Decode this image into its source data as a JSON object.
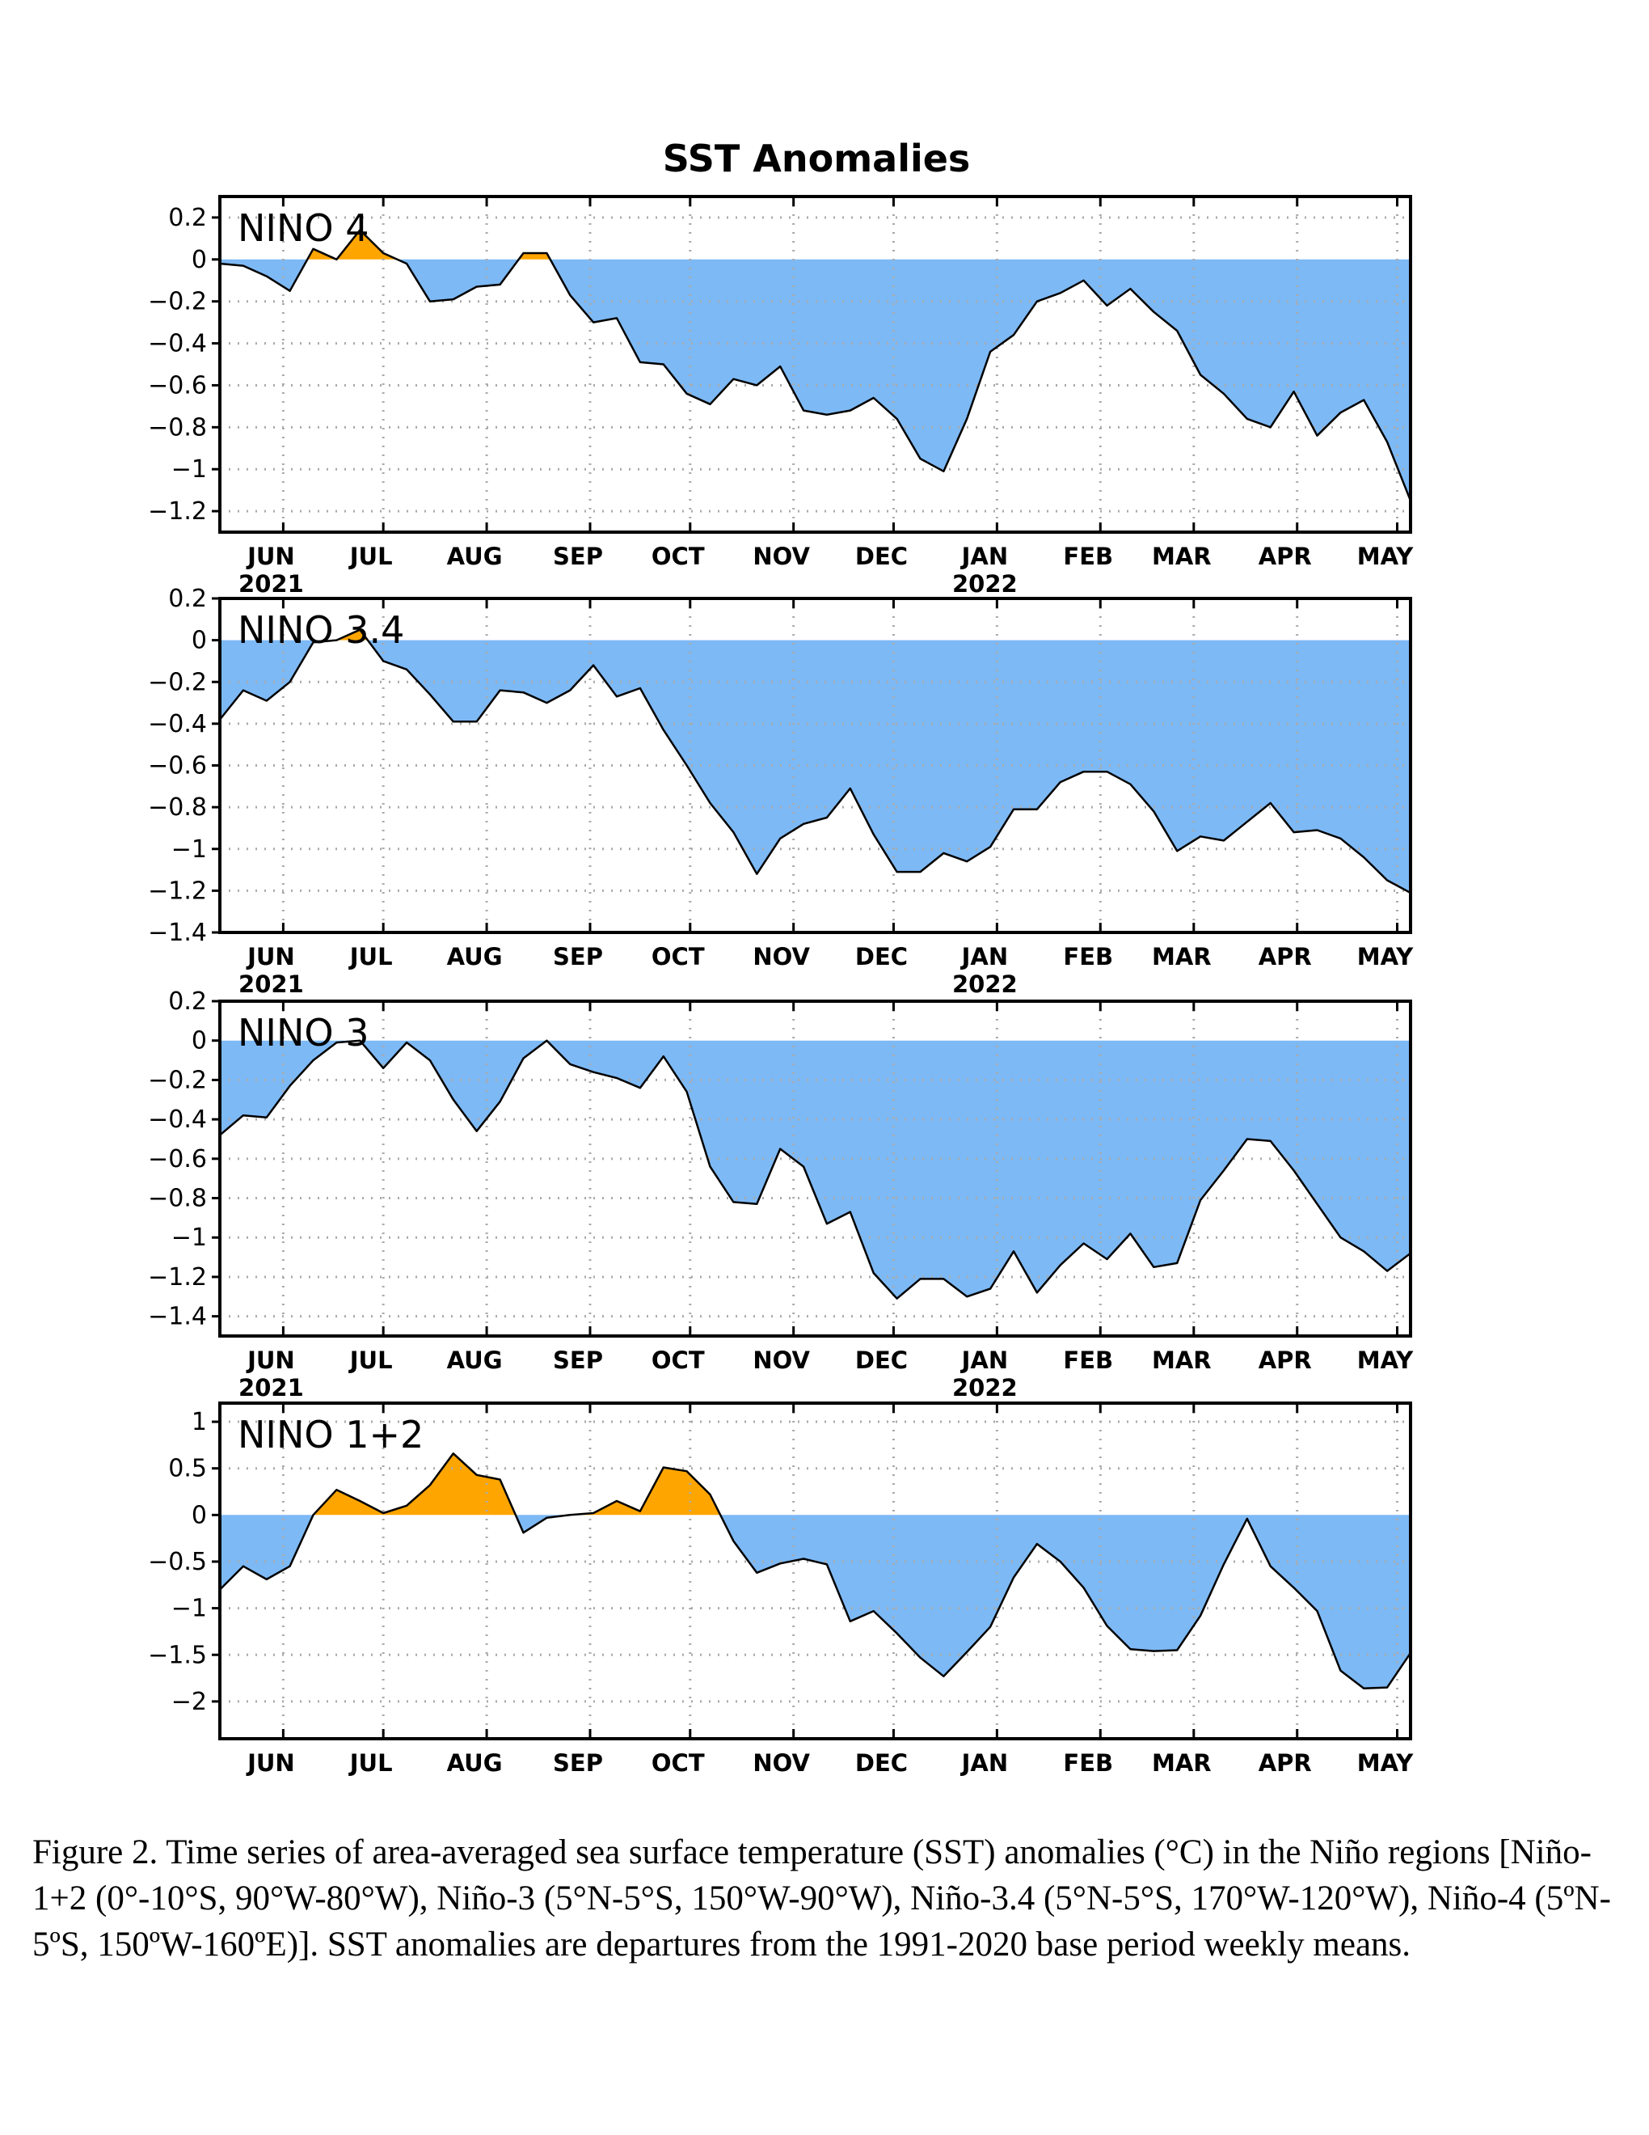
{
  "caption": "Figure 2. Time series of area-averaged sea surface temperature (SST) anomalies (°C) in the Niño regions [Niño-1+2 (0°-10°S, 90°W-80°W), Niño-3 (5°N-5°S, 150°W-90°W), Niño-3.4 (5°N-5°S, 170°W-120°W), Niño-4 (5ºN-5ºS, 150ºW-160ºE)]. SST anomalies are departures from the 1991-2020 base period weekly means.",
  "colors": {
    "positive": "#FFA500",
    "negative": "#7DB9F5",
    "line": "#000000",
    "grid": "#AAAAAA"
  },
  "chart_data": [
    {
      "type": "area",
      "title": "SST Anomalies",
      "panel_label": "NINO 4",
      "x_ticks": [
        "JUN",
        "JUL",
        "AUG",
        "SEP",
        "OCT",
        "NOV",
        "DEC",
        "JAN",
        "FEB",
        "MAR",
        "APR",
        "MAY"
      ],
      "x_years": [
        {
          "under": "JUN",
          "label": "2021"
        },
        {
          "under": "JAN",
          "label": "2022"
        }
      ],
      "xlim": [
        "2021-05-12",
        "2022-05-04"
      ],
      "ylim": [
        -1.3,
        0.3
      ],
      "y_ticks": [
        "0.2",
        "0",
        "−0.2",
        "−0.4",
        "−0.6",
        "−0.8",
        "−1",
        "−1.2"
      ],
      "y_tick_values": [
        0.2,
        0,
        -0.2,
        -0.4,
        -0.6,
        -0.8,
        -1,
        -1.2
      ],
      "grid": true,
      "dates": [
        "2021-05-12",
        "2021-05-19",
        "2021-05-26",
        "2021-06-02",
        "2021-06-09",
        "2021-06-16",
        "2021-06-23",
        "2021-06-30",
        "2021-07-07",
        "2021-07-14",
        "2021-07-21",
        "2021-07-28",
        "2021-08-04",
        "2021-08-11",
        "2021-08-18",
        "2021-08-25",
        "2021-09-01",
        "2021-09-08",
        "2021-09-15",
        "2021-09-22",
        "2021-09-29",
        "2021-10-06",
        "2021-10-13",
        "2021-10-20",
        "2021-10-27",
        "2021-11-03",
        "2021-11-10",
        "2021-11-17",
        "2021-11-24",
        "2021-12-01",
        "2021-12-08",
        "2021-12-15",
        "2021-12-22",
        "2021-12-29",
        "2022-01-05",
        "2022-01-12",
        "2022-01-19",
        "2022-01-26",
        "2022-02-02",
        "2022-02-09",
        "2022-02-16",
        "2022-02-23",
        "2022-03-02",
        "2022-03-09",
        "2022-03-16",
        "2022-03-23",
        "2022-03-30",
        "2022-04-06",
        "2022-04-13",
        "2022-04-20",
        "2022-04-27",
        "2022-05-04"
      ],
      "values": [
        -0.02,
        -0.03,
        -0.08,
        -0.15,
        0.05,
        0.0,
        0.14,
        0.03,
        -0.02,
        -0.2,
        -0.19,
        -0.13,
        -0.12,
        0.03,
        0.03,
        -0.17,
        -0.3,
        -0.28,
        -0.49,
        -0.5,
        -0.64,
        -0.69,
        -0.57,
        -0.6,
        -0.51,
        -0.72,
        -0.74,
        -0.72,
        -0.66,
        -0.76,
        -0.95,
        -1.01,
        -0.76,
        -0.44,
        -0.36,
        -0.2,
        -0.16,
        -0.1,
        -0.22,
        -0.14,
        -0.25,
        -0.34,
        -0.55,
        -0.64,
        -0.76,
        -0.8,
        -0.63,
        -0.84,
        -0.73,
        -0.67,
        -0.87,
        -1.15
      ]
    },
    {
      "type": "area",
      "panel_label": "NINO 3.4",
      "x_ticks": [
        "JUN",
        "JUL",
        "AUG",
        "SEP",
        "OCT",
        "NOV",
        "DEC",
        "JAN",
        "FEB",
        "MAR",
        "APR",
        "MAY"
      ],
      "x_years": [
        {
          "under": "JUN",
          "label": "2021"
        },
        {
          "under": "JAN",
          "label": "2022"
        }
      ],
      "xlim": [
        "2021-05-12",
        "2022-05-04"
      ],
      "ylim": [
        -1.4,
        0.2
      ],
      "y_ticks": [
        "0.2",
        "0",
        "−0.2",
        "−0.4",
        "−0.6",
        "−0.8",
        "−1",
        "−1.2",
        "−1.4"
      ],
      "y_tick_values": [
        0.2,
        0,
        -0.2,
        -0.4,
        -0.6,
        -0.8,
        -1,
        -1.2,
        -1.4
      ],
      "grid": true,
      "dates": [
        "2021-05-12",
        "2021-05-19",
        "2021-05-26",
        "2021-06-02",
        "2021-06-09",
        "2021-06-16",
        "2021-06-23",
        "2021-06-30",
        "2021-07-07",
        "2021-07-14",
        "2021-07-21",
        "2021-07-28",
        "2021-08-04",
        "2021-08-11",
        "2021-08-18",
        "2021-08-25",
        "2021-09-01",
        "2021-09-08",
        "2021-09-15",
        "2021-09-22",
        "2021-09-29",
        "2021-10-06",
        "2021-10-13",
        "2021-10-20",
        "2021-10-27",
        "2021-11-03",
        "2021-11-10",
        "2021-11-17",
        "2021-11-24",
        "2021-12-01",
        "2021-12-08",
        "2021-12-15",
        "2021-12-22",
        "2021-12-29",
        "2022-01-05",
        "2022-01-12",
        "2022-01-19",
        "2022-01-26",
        "2022-02-02",
        "2022-02-09",
        "2022-02-16",
        "2022-02-23",
        "2022-03-02",
        "2022-03-09",
        "2022-03-16",
        "2022-03-23",
        "2022-03-30",
        "2022-04-06",
        "2022-04-13",
        "2022-04-20",
        "2022-04-27",
        "2022-05-04"
      ],
      "values": [
        -0.38,
        -0.24,
        -0.29,
        -0.2,
        -0.01,
        0.0,
        0.05,
        -0.1,
        -0.14,
        -0.26,
        -0.39,
        -0.39,
        -0.24,
        -0.25,
        -0.3,
        -0.24,
        -0.12,
        -0.27,
        -0.23,
        -0.43,
        -0.6,
        -0.78,
        -0.92,
        -1.12,
        -0.95,
        -0.88,
        -0.85,
        -0.71,
        -0.93,
        -1.11,
        -1.11,
        -1.02,
        -1.06,
        -0.99,
        -0.81,
        -0.81,
        -0.68,
        -0.63,
        -0.63,
        -0.69,
        -0.82,
        -1.01,
        -0.94,
        -0.96,
        -0.87,
        -0.78,
        -0.92,
        -0.91,
        -0.95,
        -1.04,
        -1.15,
        -1.21
      ]
    },
    {
      "type": "area",
      "panel_label": "NINO 3",
      "x_ticks": [
        "JUN",
        "JUL",
        "AUG",
        "SEP",
        "OCT",
        "NOV",
        "DEC",
        "JAN",
        "FEB",
        "MAR",
        "APR",
        "MAY"
      ],
      "x_years": [
        {
          "under": "JUN",
          "label": "2021"
        },
        {
          "under": "JAN",
          "label": "2022"
        }
      ],
      "xlim": [
        "2021-05-12",
        "2022-05-04"
      ],
      "ylim": [
        -1.5,
        0.2
      ],
      "y_ticks": [
        "0.2",
        "0",
        "−0.2",
        "−0.4",
        "−0.6",
        "−0.8",
        "−1",
        "−1.2",
        "−1.4"
      ],
      "y_tick_values": [
        0.2,
        0,
        -0.2,
        -0.4,
        -0.6,
        -0.8,
        -1,
        -1.2,
        -1.4
      ],
      "grid": true,
      "dates": [
        "2021-05-12",
        "2021-05-19",
        "2021-05-26",
        "2021-06-02",
        "2021-06-09",
        "2021-06-16",
        "2021-06-23",
        "2021-06-30",
        "2021-07-07",
        "2021-07-14",
        "2021-07-21",
        "2021-07-28",
        "2021-08-04",
        "2021-08-11",
        "2021-08-18",
        "2021-08-25",
        "2021-09-01",
        "2021-09-08",
        "2021-09-15",
        "2021-09-22",
        "2021-09-29",
        "2021-10-06",
        "2021-10-13",
        "2021-10-20",
        "2021-10-27",
        "2021-11-03",
        "2021-11-10",
        "2021-11-17",
        "2021-11-24",
        "2021-12-01",
        "2021-12-08",
        "2021-12-15",
        "2021-12-22",
        "2021-12-29",
        "2022-01-05",
        "2022-01-12",
        "2022-01-19",
        "2022-01-26",
        "2022-02-02",
        "2022-02-09",
        "2022-02-16",
        "2022-02-23",
        "2022-03-02",
        "2022-03-09",
        "2022-03-16",
        "2022-03-23",
        "2022-03-30",
        "2022-04-06",
        "2022-04-13",
        "2022-04-20",
        "2022-04-27",
        "2022-05-04"
      ],
      "values": [
        -0.48,
        -0.38,
        -0.39,
        -0.23,
        -0.1,
        -0.01,
        0.0,
        -0.14,
        -0.01,
        -0.1,
        -0.3,
        -0.46,
        -0.31,
        -0.09,
        0.0,
        -0.12,
        -0.16,
        -0.19,
        -0.24,
        -0.08,
        -0.26,
        -0.64,
        -0.82,
        -0.83,
        -0.55,
        -0.64,
        -0.93,
        -0.87,
        -1.18,
        -1.31,
        -1.21,
        -1.21,
        -1.3,
        -1.26,
        -1.07,
        -1.28,
        -1.14,
        -1.03,
        -1.11,
        -0.98,
        -1.15,
        -1.13,
        -0.81,
        -0.66,
        -0.5,
        -0.51,
        -0.66,
        -0.83,
        -1.0,
        -1.07,
        -1.17,
        -1.08
      ]
    },
    {
      "type": "area",
      "panel_label": "NINO 1+2",
      "x_ticks": [
        "JUN",
        "JUL",
        "AUG",
        "SEP",
        "OCT",
        "NOV",
        "DEC",
        "JAN",
        "FEB",
        "MAR",
        "APR",
        "MAY"
      ],
      "x_years": [
        {
          "under": "JUN",
          "label": "2021"
        },
        {
          "under": "JAN",
          "label": "2022"
        }
      ],
      "xlim": [
        "2021-05-12",
        "2022-05-04"
      ],
      "ylim": [
        -2.4,
        1.2
      ],
      "y_ticks": [
        "1",
        "0.5",
        "0",
        "−0.5",
        "−1",
        "−1.5",
        "−2"
      ],
      "y_tick_values": [
        1,
        0.5,
        0,
        -0.5,
        -1,
        -1.5,
        -2
      ],
      "grid": true,
      "dates": [
        "2021-05-12",
        "2021-05-19",
        "2021-05-26",
        "2021-06-02",
        "2021-06-09",
        "2021-06-16",
        "2021-06-23",
        "2021-06-30",
        "2021-07-07",
        "2021-07-14",
        "2021-07-21",
        "2021-07-28",
        "2021-08-04",
        "2021-08-11",
        "2021-08-18",
        "2021-08-25",
        "2021-09-01",
        "2021-09-08",
        "2021-09-15",
        "2021-09-22",
        "2021-09-29",
        "2021-10-06",
        "2021-10-13",
        "2021-10-20",
        "2021-10-27",
        "2021-11-03",
        "2021-11-10",
        "2021-11-17",
        "2021-11-24",
        "2021-12-01",
        "2021-12-08",
        "2021-12-15",
        "2021-12-22",
        "2021-12-29",
        "2022-01-05",
        "2022-01-12",
        "2022-01-19",
        "2022-01-26",
        "2022-02-02",
        "2022-02-09",
        "2022-02-16",
        "2022-02-23",
        "2022-03-02",
        "2022-03-09",
        "2022-03-16",
        "2022-03-23",
        "2022-03-30",
        "2022-04-06",
        "2022-04-13",
        "2022-04-20",
        "2022-04-27",
        "2022-05-04"
      ],
      "values": [
        -0.8,
        -0.55,
        -0.69,
        -0.55,
        0.0,
        0.27,
        0.15,
        0.02,
        0.1,
        0.32,
        0.66,
        0.43,
        0.38,
        -0.19,
        -0.03,
        0.0,
        0.02,
        0.15,
        0.04,
        0.51,
        0.47,
        0.22,
        -0.28,
        -0.62,
        -0.52,
        -0.47,
        -0.53,
        -1.14,
        -1.03,
        -1.27,
        -1.53,
        -1.73,
        -1.47,
        -1.2,
        -0.67,
        -0.31,
        -0.5,
        -0.78,
        -1.19,
        -1.44,
        -1.46,
        -1.45,
        -1.08,
        -0.53,
        -0.04,
        -0.55,
        -0.78,
        -1.03,
        -1.67,
        -1.86,
        -1.85,
        -1.48
      ]
    }
  ]
}
